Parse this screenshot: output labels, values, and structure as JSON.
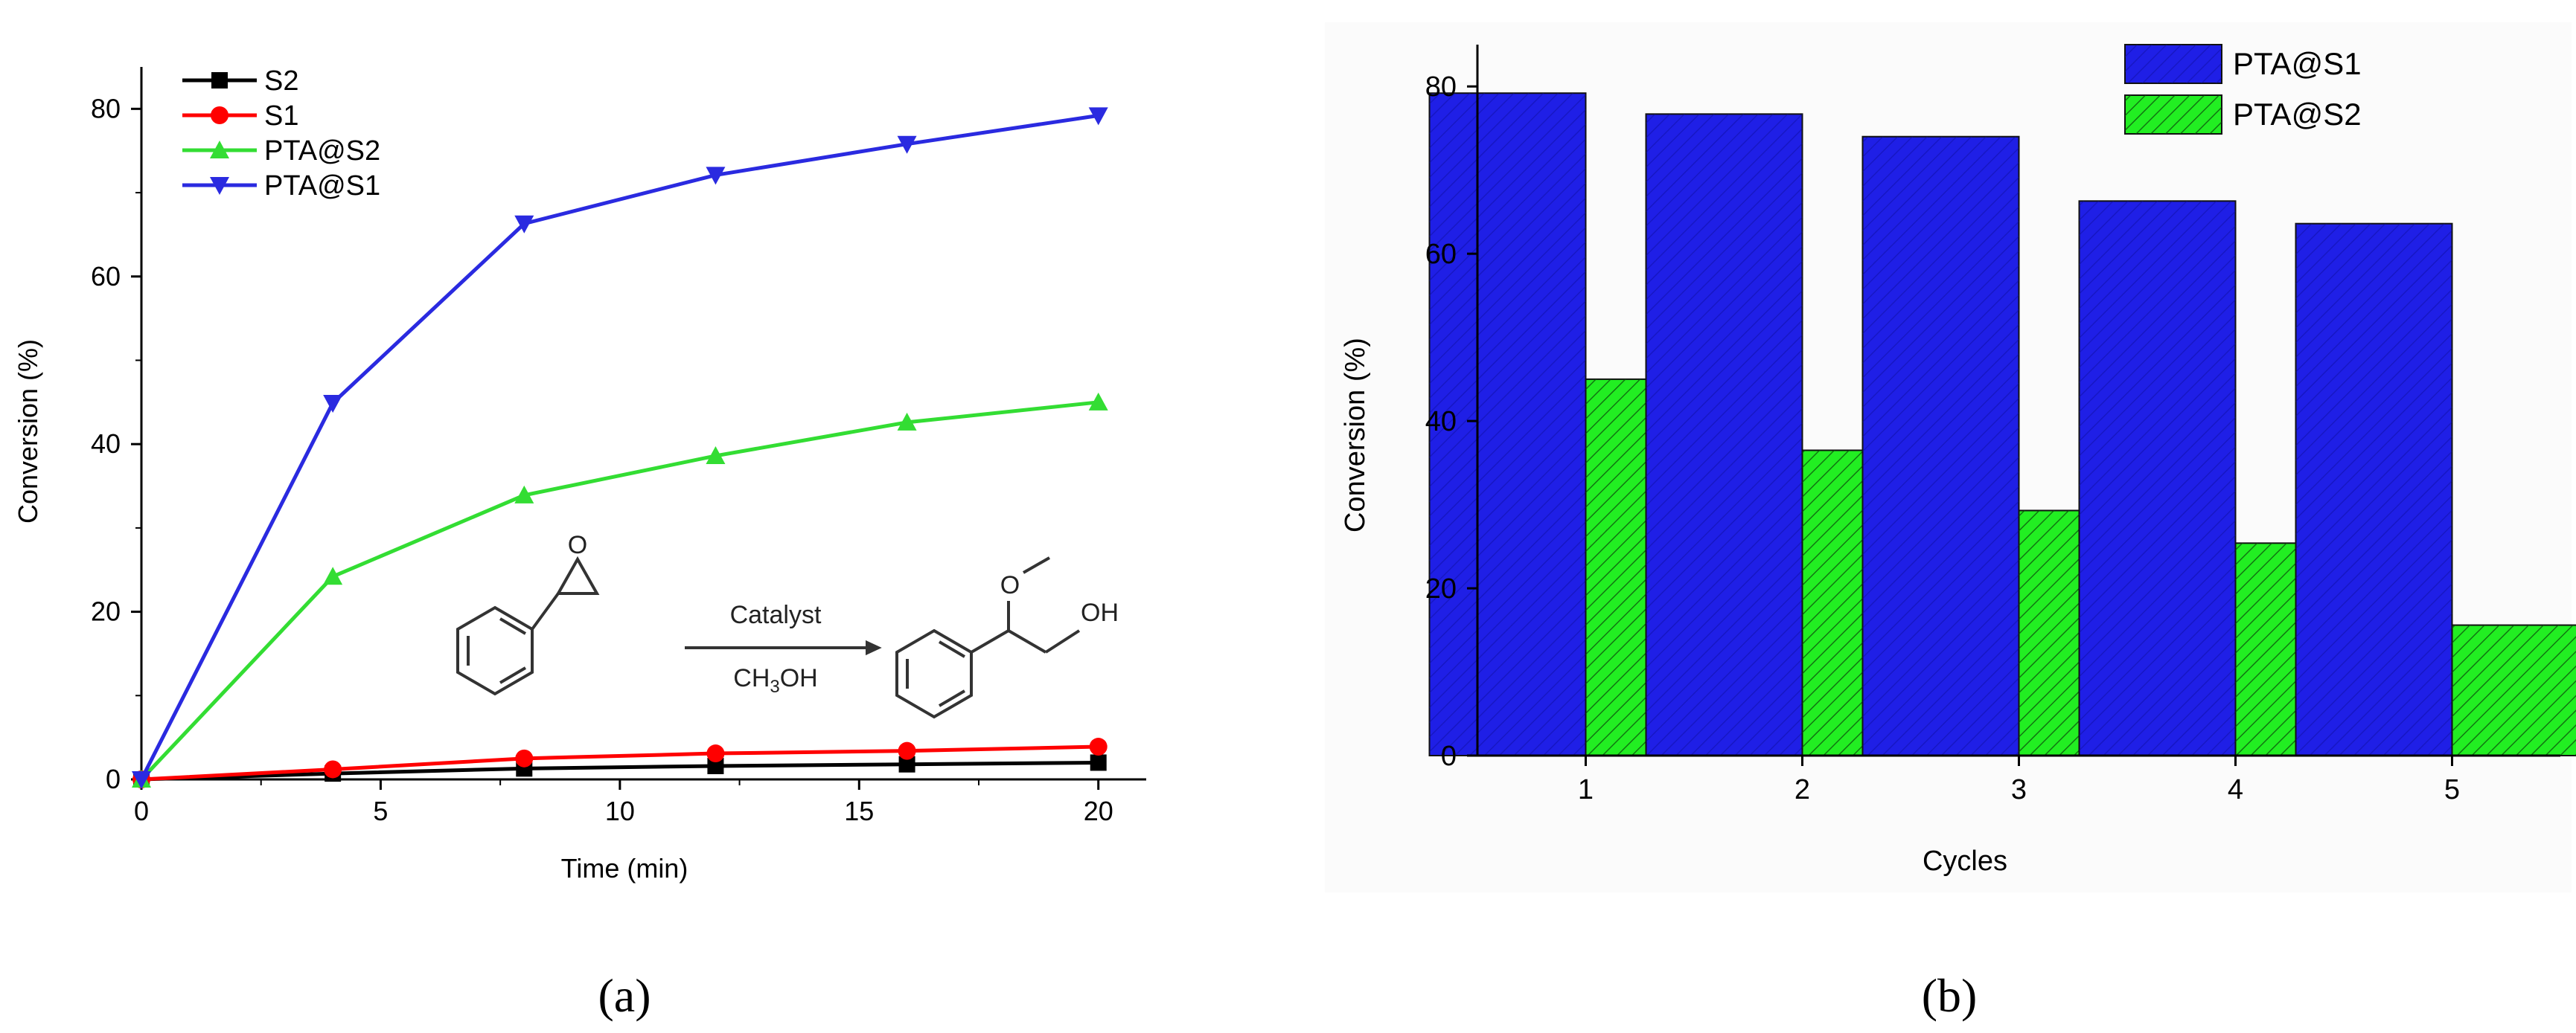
{
  "chart_data": [
    {
      "panel_label": "(a)",
      "type": "line",
      "xlabel": "Time (min)",
      "ylabel": "Conversion (%)",
      "xlim": [
        0,
        21
      ],
      "ylim": [
        0,
        85
      ],
      "x_ticks": [
        0,
        5,
        10,
        15,
        20
      ],
      "y_ticks": [
        0,
        20,
        40,
        60,
        80
      ],
      "grid": false,
      "legend_position": "top-left",
      "x": [
        0,
        4,
        8,
        12,
        16,
        20
      ],
      "series": [
        {
          "name": "S2",
          "color": "#000000",
          "marker": "square",
          "values": [
            0,
            0.7,
            1.3,
            1.6,
            1.8,
            2.0
          ]
        },
        {
          "name": "S1",
          "color": "#ff0000",
          "marker": "circle",
          "values": [
            0,
            1.2,
            2.5,
            3.1,
            3.4,
            3.9
          ]
        },
        {
          "name": "PTA@S2",
          "color": "#33dd33",
          "marker": "triangle-up",
          "values": [
            0,
            24.2,
            33.9,
            38.6,
            42.6,
            45.0
          ]
        },
        {
          "name": "PTA@S1",
          "color": "#2a2ae0",
          "marker": "triangle-down",
          "values": [
            0,
            44.9,
            66.3,
            72.1,
            75.8,
            79.2
          ]
        }
      ],
      "inset": {
        "description": "reaction scheme",
        "arrow_top_label": "Catalyst",
        "arrow_bottom_label": "CH3OH",
        "product_labels": [
          "O",
          "OH"
        ],
        "reactant_labels": [
          "O"
        ]
      }
    },
    {
      "panel_label": "(b)",
      "type": "bar",
      "xlabel": "Cycles",
      "ylabel": "Conversion (%)",
      "ylim": [
        0,
        85
      ],
      "y_ticks": [
        0,
        20,
        40,
        60,
        80
      ],
      "grid": false,
      "legend_position": "top-right",
      "categories": [
        "1",
        "2",
        "3",
        "4",
        "5"
      ],
      "series": [
        {
          "name": "PTA@S1",
          "color": "#1f1fe6",
          "values": [
            79.2,
            76.7,
            74.0,
            66.3,
            63.6
          ]
        },
        {
          "name": "PTA@S2",
          "color": "#22ee22",
          "values": [
            45.0,
            36.5,
            29.3,
            25.4,
            15.6
          ]
        }
      ]
    }
  ]
}
